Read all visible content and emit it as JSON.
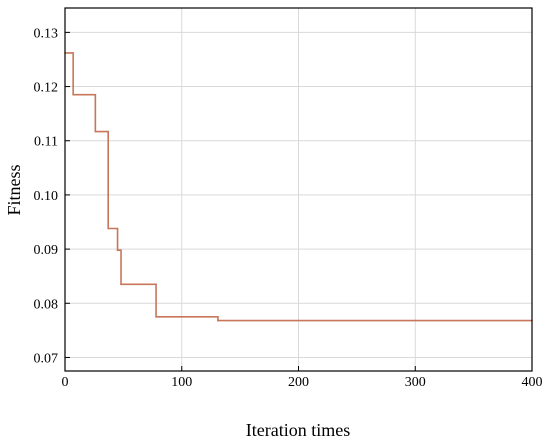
{
  "chart_data": {
    "type": "line",
    "xlabel": "Iteration times",
    "ylabel": "Fitness",
    "xlim": [
      0,
      400
    ],
    "ylim": [
      0.0675,
      0.1345
    ],
    "x_ticks": [
      0,
      100,
      200,
      300,
      400
    ],
    "y_ticks": [
      0.07,
      0.08,
      0.09,
      0.1,
      0.11,
      0.12,
      0.13
    ],
    "x_tick_labels": [
      "0",
      "100",
      "200",
      "300",
      "400"
    ],
    "y_tick_labels": [
      "0.07",
      "0.08",
      "0.09",
      "0.10",
      "0.11",
      "0.12",
      "0.13"
    ],
    "grid": true,
    "series": [
      {
        "color": "#c8765a",
        "step": true,
        "x": [
          0,
          7,
          26,
          37,
          45,
          48,
          78,
          131,
          400
        ],
        "y": [
          0.1262,
          0.1185,
          0.1117,
          0.0938,
          0.0898,
          0.0835,
          0.0775,
          0.0768,
          0.0768
        ]
      }
    ]
  }
}
